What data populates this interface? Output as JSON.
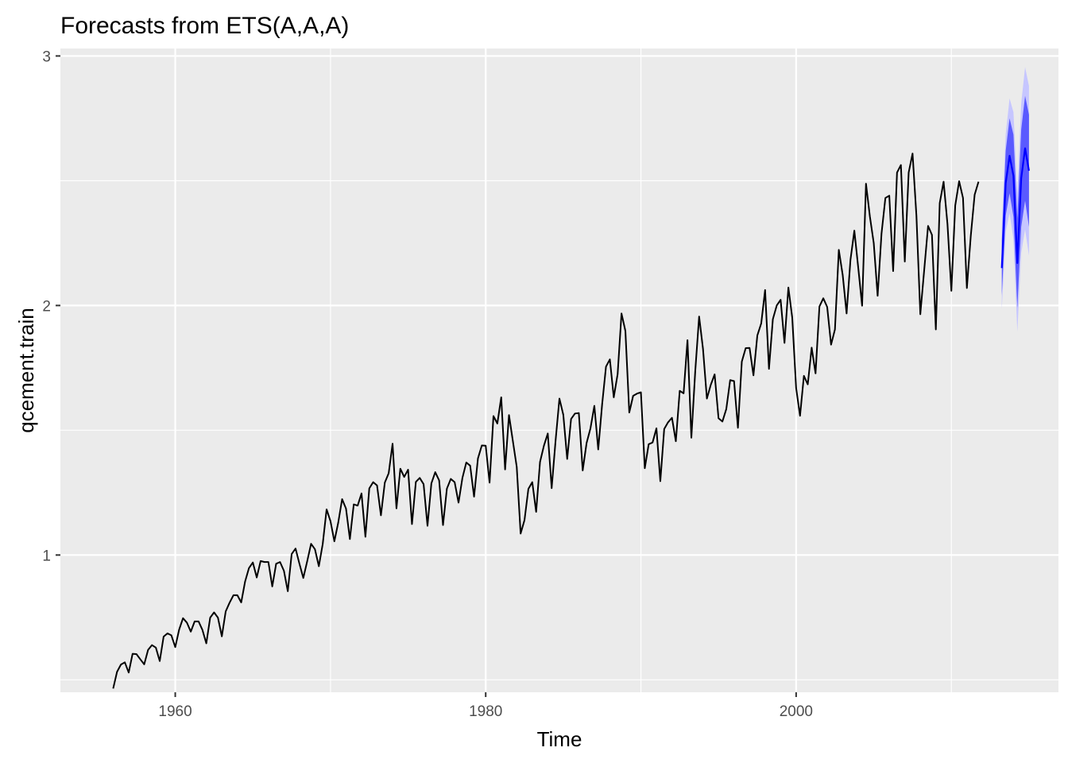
{
  "chart_data": {
    "type": "line",
    "title": "Forecasts from ETS(A,A,A)",
    "xlabel": "Time",
    "ylabel": "qcement.train",
    "xlim": [
      1952.6,
      2016.9
    ],
    "ylim": [
      0.45,
      3.03
    ],
    "x_ticks": [
      1960,
      1980,
      2000
    ],
    "x_tick_labels": [
      "1960",
      "1980",
      "2000"
    ],
    "x_minor_ticks": [
      1950,
      1970,
      1990,
      2010
    ],
    "y_ticks": [
      1,
      2,
      3
    ],
    "y_tick_labels": [
      "1",
      "2",
      "3"
    ],
    "y_minor_ticks": [
      0.5,
      1.5,
      2.5
    ],
    "grid": true,
    "background": "#ebebeb",
    "colors": {
      "line": "#000000",
      "forecast": "#0000ff",
      "pi80": "#5a5aff",
      "pi95": "#c6c6ff",
      "grid": "#ffffff"
    },
    "start": 1956,
    "frequency": 4,
    "series": [
      {
        "values": [
          0.465,
          0.532,
          0.561,
          0.57,
          0.529,
          0.604,
          0.603,
          0.582,
          0.562,
          0.62,
          0.639,
          0.629,
          0.575,
          0.673,
          0.686,
          0.678,
          0.631,
          0.701,
          0.747,
          0.729,
          0.693,
          0.734,
          0.734,
          0.7,
          0.646,
          0.749,
          0.77,
          0.749,
          0.674,
          0.774,
          0.809,
          0.839,
          0.839,
          0.81,
          0.894,
          0.948,
          0.97,
          0.91,
          0.976,
          0.972,
          0.972,
          0.874,
          0.965,
          0.972,
          0.937,
          0.855,
          1.004,
          1.026,
          0.965,
          0.908,
          0.975,
          1.045,
          1.023,
          0.955,
          1.044,
          1.183,
          1.136,
          1.055,
          1.13,
          1.224,
          1.186,
          1.064,
          1.203,
          1.198,
          1.247,
          1.073,
          1.267,
          1.292,
          1.279,
          1.159,
          1.29,
          1.328,
          1.446,
          1.187,
          1.346,
          1.313,
          1.342,
          1.124,
          1.293,
          1.309,
          1.284,
          1.117,
          1.287,
          1.332,
          1.299,
          1.12,
          1.266,
          1.305,
          1.292,
          1.21,
          1.309,
          1.371,
          1.358,
          1.234,
          1.387,
          1.439,
          1.438,
          1.29,
          1.557,
          1.527,
          1.632,
          1.343,
          1.561,
          1.457,
          1.353,
          1.086,
          1.14,
          1.265,
          1.292,
          1.173,
          1.373,
          1.438,
          1.487,
          1.268,
          1.457,
          1.627,
          1.562,
          1.385,
          1.545,
          1.567,
          1.569,
          1.339,
          1.449,
          1.508,
          1.598,
          1.423,
          1.603,
          1.755,
          1.784,
          1.632,
          1.725,
          1.968,
          1.898,
          1.571,
          1.638,
          1.647,
          1.652,
          1.348,
          1.444,
          1.451,
          1.508,
          1.296,
          1.505,
          1.532,
          1.55,
          1.456,
          1.658,
          1.648,
          1.861,
          1.47,
          1.737,
          1.956,
          1.826,
          1.627,
          1.682,
          1.724,
          1.548,
          1.535,
          1.585,
          1.701,
          1.697,
          1.51,
          1.775,
          1.829,
          1.83,
          1.72,
          1.88,
          1.928,
          2.062,
          1.746,
          1.945,
          2.0,
          2.023,
          1.85,
          2.072,
          1.951,
          1.669,
          1.558,
          1.718,
          1.684,
          1.831,
          1.728,
          1.996,
          2.029,
          1.994,
          1.843,
          1.904,
          2.223,
          2.122,
          1.968,
          2.183,
          2.3,
          2.152,
          1.999,
          2.488,
          2.357,
          2.25,
          2.039,
          2.288,
          2.431,
          2.44,
          2.138,
          2.533,
          2.563,
          2.176,
          2.533,
          2.609,
          2.359,
          1.965,
          2.142,
          2.319,
          2.283,
          1.904,
          2.41,
          2.496,
          2.326,
          2.059,
          2.401,
          2.498,
          2.431,
          2.07,
          2.278,
          2.444,
          2.496
        ]
      }
    ],
    "forecast": {
      "start": 2013.25,
      "frequency": 4,
      "values": [
        2.15,
        2.49,
        2.6,
        2.52,
        2.17,
        2.51,
        2.63,
        2.54
      ],
      "lo80": [
        2.04,
        2.36,
        2.45,
        2.355,
        1.99,
        2.315,
        2.42,
        2.315
      ],
      "hi80": [
        2.26,
        2.62,
        2.75,
        2.685,
        2.35,
        2.705,
        2.84,
        2.765
      ],
      "lo95": [
        1.985,
        2.295,
        2.37,
        2.265,
        1.895,
        2.21,
        2.305,
        2.2
      ],
      "hi95": [
        2.315,
        2.685,
        2.83,
        2.775,
        2.445,
        2.81,
        2.955,
        2.88
      ]
    }
  }
}
